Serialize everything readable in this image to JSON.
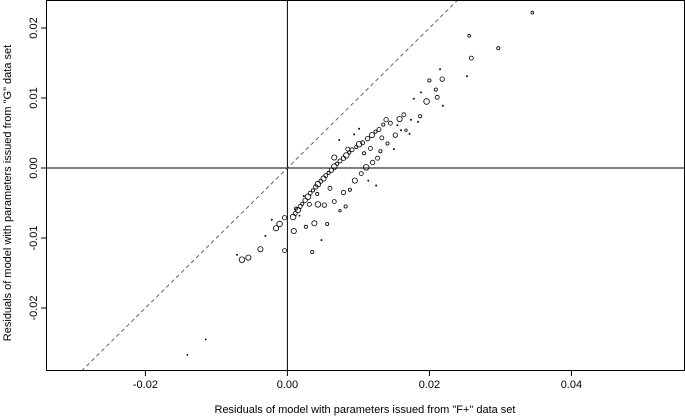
{
  "chart_data": {
    "type": "scatter",
    "title": "",
    "xlabel": "Residuals of model with parameters issued from \"F+\" data set",
    "ylabel": "Residuals of model with parameters issued from \"G\" data set",
    "xlim": [
      -0.034,
      0.056
    ],
    "ylim": [
      -0.029,
      0.024
    ],
    "x_ticks": [
      {
        "value": -0.02,
        "label": "-0.02"
      },
      {
        "value": 0.0,
        "label": "0.00"
      },
      {
        "value": 0.02,
        "label": "0.02"
      },
      {
        "value": 0.04,
        "label": "0.04"
      }
    ],
    "y_ticks": [
      {
        "value": -0.02,
        "label": "-0.02"
      },
      {
        "value": -0.01,
        "label": "-0.01"
      },
      {
        "value": 0.0,
        "label": "0.00"
      },
      {
        "value": 0.01,
        "label": "0.01"
      },
      {
        "value": 0.02,
        "label": "0.02"
      }
    ],
    "reference_lines": {
      "horizontal_at": 0.0,
      "vertical_at": 0.0,
      "diagonal_identity": true
    },
    "grid": false,
    "marker": "open-circle",
    "points": [
      {
        "x": 0.0345,
        "y": 0.0222,
        "s": 1.4
      },
      {
        "x": 0.0297,
        "y": 0.0171,
        "s": 1.6
      },
      {
        "x": 0.0256,
        "y": 0.0189,
        "s": 1.4
      },
      {
        "x": 0.0259,
        "y": 0.0157,
        "s": 2.0
      },
      {
        "x": 0.0253,
        "y": 0.0131,
        "s": 0.6
      },
      {
        "x": 0.0215,
        "y": 0.0141,
        "s": 0.6
      },
      {
        "x": 0.0218,
        "y": 0.0127,
        "s": 2.2
      },
      {
        "x": 0.02,
        "y": 0.0125,
        "s": 1.6
      },
      {
        "x": 0.0209,
        "y": 0.0112,
        "s": 1.6
      },
      {
        "x": 0.0211,
        "y": 0.0101,
        "s": 2.0
      },
      {
        "x": 0.0196,
        "y": 0.0095,
        "s": 2.8
      },
      {
        "x": 0.0188,
        "y": 0.0108,
        "s": 0.6
      },
      {
        "x": 0.0178,
        "y": 0.0099,
        "s": 0.6
      },
      {
        "x": 0.0219,
        "y": 0.0089,
        "s": 0.6
      },
      {
        "x": 0.0164,
        "y": 0.0076,
        "s": 2.0
      },
      {
        "x": 0.0158,
        "y": 0.007,
        "s": 2.6
      },
      {
        "x": 0.0155,
        "y": 0.0061,
        "s": 0.6
      },
      {
        "x": 0.016,
        "y": 0.0054,
        "s": 0.6
      },
      {
        "x": 0.0152,
        "y": 0.0047,
        "s": 2.2
      },
      {
        "x": 0.0145,
        "y": 0.0064,
        "s": 2.0
      },
      {
        "x": 0.0139,
        "y": 0.0069,
        "s": 2.2
      },
      {
        "x": 0.0135,
        "y": 0.0062,
        "s": 1.6
      },
      {
        "x": 0.0129,
        "y": 0.0055,
        "s": 2.0
      },
      {
        "x": 0.0124,
        "y": 0.0052,
        "s": 1.6
      },
      {
        "x": 0.0119,
        "y": 0.0047,
        "s": 2.6
      },
      {
        "x": 0.0113,
        "y": 0.0042,
        "s": 2.2
      },
      {
        "x": 0.0106,
        "y": 0.0036,
        "s": 2.0
      },
      {
        "x": 0.0101,
        "y": 0.0034,
        "s": 2.8
      },
      {
        "x": 0.0097,
        "y": 0.003,
        "s": 1.6
      },
      {
        "x": 0.0091,
        "y": 0.0026,
        "s": 2.0
      },
      {
        "x": 0.0087,
        "y": 0.0022,
        "s": 1.6
      },
      {
        "x": 0.0083,
        "y": 0.0018,
        "s": 2.8
      },
      {
        "x": 0.0079,
        "y": 0.0014,
        "s": 2.2
      },
      {
        "x": 0.0074,
        "y": 0.001,
        "s": 2.0
      },
      {
        "x": 0.007,
        "y": 0.0006,
        "s": 1.6
      },
      {
        "x": 0.0066,
        "y": 0.0002,
        "s": 2.8
      },
      {
        "x": 0.0062,
        "y": -0.0003,
        "s": 2.2
      },
      {
        "x": 0.0058,
        "y": -0.0007,
        "s": 1.6
      },
      {
        "x": 0.0054,
        "y": -0.0011,
        "s": 2.0
      },
      {
        "x": 0.0051,
        "y": -0.0015,
        "s": 2.6
      },
      {
        "x": 0.0047,
        "y": -0.0019,
        "s": 2.0
      },
      {
        "x": 0.0043,
        "y": -0.0023,
        "s": 2.8
      },
      {
        "x": 0.004,
        "y": -0.0027,
        "s": 2.2
      },
      {
        "x": 0.0036,
        "y": -0.0032,
        "s": 1.6
      },
      {
        "x": 0.0032,
        "y": -0.0036,
        "s": 2.0
      },
      {
        "x": 0.0029,
        "y": -0.0041,
        "s": 2.8
      },
      {
        "x": 0.0025,
        "y": -0.0046,
        "s": 2.2
      },
      {
        "x": 0.0021,
        "y": -0.0051,
        "s": 1.6
      },
      {
        "x": 0.0018,
        "y": -0.0055,
        "s": 2.0
      },
      {
        "x": 0.0015,
        "y": -0.006,
        "s": 2.6
      },
      {
        "x": 0.0011,
        "y": -0.0065,
        "s": 2.0
      },
      {
        "x": 0.0008,
        "y": -0.007,
        "s": 2.8
      },
      {
        "x": 0.0012,
        "y": -0.0058,
        "s": 1.6
      },
      {
        "x": 0.0031,
        "y": -0.0052,
        "s": 2.0
      },
      {
        "x": 0.0043,
        "y": -0.0052,
        "s": 2.8
      },
      {
        "x": 0.0052,
        "y": -0.0053,
        "s": 2.2
      },
      {
        "x": 0.0066,
        "y": -0.0048,
        "s": 2.0
      },
      {
        "x": 0.0079,
        "y": -0.0035,
        "s": 2.2
      },
      {
        "x": 0.0088,
        "y": -0.0031,
        "s": 1.6
      },
      {
        "x": 0.0095,
        "y": -0.0018,
        "s": 2.6
      },
      {
        "x": 0.0104,
        "y": -0.0008,
        "s": 2.0
      },
      {
        "x": 0.0111,
        "y": 0.0001,
        "s": 2.8
      },
      {
        "x": 0.012,
        "y": 0.0008,
        "s": 2.2
      },
      {
        "x": 0.0127,
        "y": 0.0014,
        "s": 2.0
      },
      {
        "x": 0.0131,
        "y": 0.0024,
        "s": 1.6
      },
      {
        "x": 0.0117,
        "y": 0.0028,
        "s": 2.0
      },
      {
        "x": 0.0108,
        "y": 0.0021,
        "s": 1.6
      },
      {
        "x": 0.0114,
        "y": -0.0018,
        "s": 0.6
      },
      {
        "x": 0.0125,
        "y": -0.0025,
        "s": 0.6
      },
      {
        "x": 0.0082,
        "y": -0.0055,
        "s": 1.6
      },
      {
        "x": 0.0074,
        "y": -0.0061,
        "s": 1.2
      },
      {
        "x": 0.0056,
        "y": -0.008,
        "s": 1.6
      },
      {
        "x": 0.0038,
        "y": -0.0079,
        "s": 2.6
      },
      {
        "x": 0.0026,
        "y": -0.0084,
        "s": 1.6
      },
      {
        "x": 0.0048,
        "y": -0.0103,
        "s": 0.6
      },
      {
        "x": 0.0035,
        "y": -0.012,
        "s": 1.6
      },
      {
        "x": 0.0009,
        "y": -0.009,
        "s": 2.6
      },
      {
        "x": -0.0004,
        "y": -0.0071,
        "s": 2.2
      },
      {
        "x": -0.0011,
        "y": -0.008,
        "s": 2.8
      },
      {
        "x": -0.0016,
        "y": -0.0086,
        "s": 2.6
      },
      {
        "x": -0.0022,
        "y": -0.0074,
        "s": 0.6
      },
      {
        "x": -0.0004,
        "y": -0.0118,
        "s": 2.0
      },
      {
        "x": -0.0038,
        "y": -0.0116,
        "s": 2.6
      },
      {
        "x": -0.0055,
        "y": -0.0128,
        "s": 2.6
      },
      {
        "x": -0.0064,
        "y": -0.0131,
        "s": 2.8
      },
      {
        "x": -0.0071,
        "y": -0.0124,
        "s": 0.6
      },
      {
        "x": -0.0031,
        "y": -0.0097,
        "s": 0.6
      },
      {
        "x": -0.0115,
        "y": -0.0245,
        "s": 0.5
      },
      {
        "x": -0.0141,
        "y": -0.0267,
        "s": 0.5
      },
      {
        "x": 0.0141,
        "y": 0.0035,
        "s": 1.6
      },
      {
        "x": 0.015,
        "y": 0.0027,
        "s": 0.6
      },
      {
        "x": 0.0133,
        "y": 0.0043,
        "s": 2.0
      },
      {
        "x": 0.0172,
        "y": 0.0049,
        "s": 0.6
      },
      {
        "x": 0.0174,
        "y": 0.0069,
        "s": 0.6
      },
      {
        "x": 0.0184,
        "y": 0.0066,
        "s": 0.6
      },
      {
        "x": 0.0167,
        "y": 0.0054,
        "s": 1.2
      },
      {
        "x": 0.0187,
        "y": 0.0074,
        "s": 1.6
      },
      {
        "x": 0.0101,
        "y": 0.0056,
        "s": 0.6
      },
      {
        "x": 0.0094,
        "y": 0.0048,
        "s": 0.6
      },
      {
        "x": 0.0073,
        "y": 0.004,
        "s": 0.6
      },
      {
        "x": 0.0085,
        "y": 0.0027,
        "s": 2.0
      },
      {
        "x": 0.0066,
        "y": 0.0015,
        "s": 2.6
      },
      {
        "x": 0.006,
        "y": -0.0029,
        "s": 2.0
      },
      {
        "x": 0.0042,
        "y": -0.0037,
        "s": 1.6
      },
      {
        "x": 0.0023,
        "y": -0.004,
        "s": 0.6
      },
      {
        "x": 0.0017,
        "y": -0.0068,
        "s": 0.6
      }
    ]
  }
}
